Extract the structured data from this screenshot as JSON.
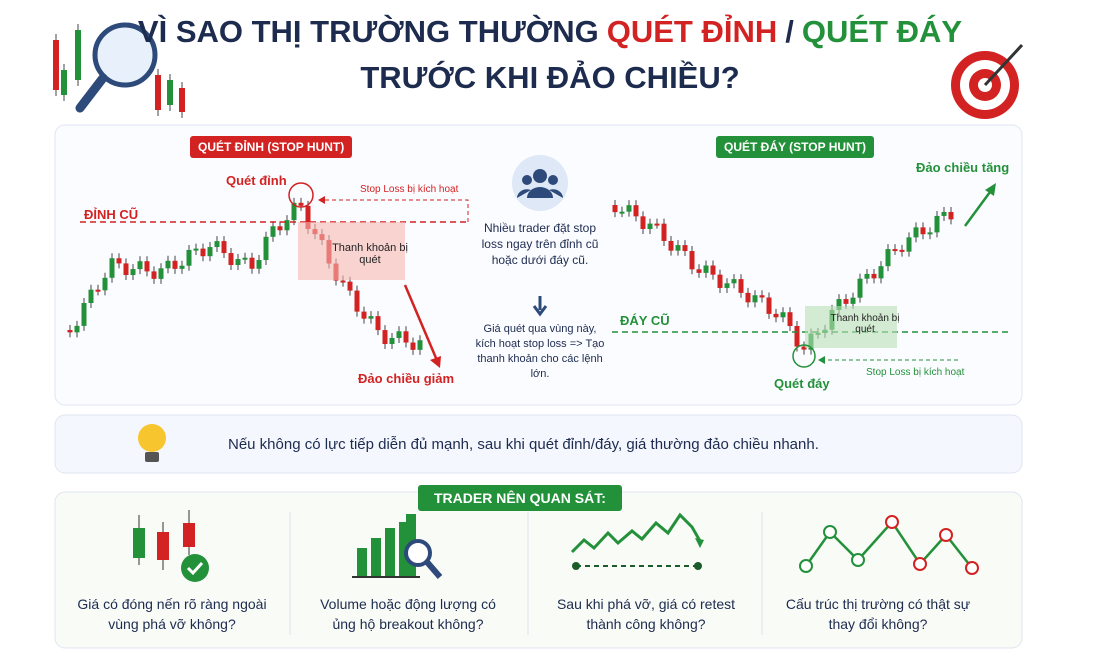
{
  "header": {
    "title_line1": [
      "VÌ SAO THỊ TRƯỜNG THƯỜNG",
      "QUÉT ĐỈNH",
      "/",
      "QUÉT ĐÁY"
    ],
    "title_line2": "TRƯỚC KHI ĐẢO CHIỀU?"
  },
  "left_panel": {
    "badge": "QUÉT ĐỈNH (STOP HUNT)",
    "sweep_label": "Quét đỉnh",
    "level_label": "ĐỈNH CŨ",
    "stop_label": "Stop Loss bị kích hoạt",
    "zone_label": "Thanh khoản bị quét",
    "reversal_label": "Đảo chiều giảm"
  },
  "middle": {
    "text1": "Nhiều trader đặt stop loss ngay trên đỉnh cũ hoặc dưới đáy cũ.",
    "text2": "Giá quét qua vùng này, kích hoạt stop loss => Tạo thanh khoản cho các lệnh lớn."
  },
  "right_panel": {
    "badge": "QUÉT ĐÁY (STOP HUNT)",
    "reversal_label": "Đảo chiều tăng",
    "level_label": "ĐÁY CŨ",
    "zone_label": "Thanh khoản bị quét",
    "sweep_label": "Quét đáy",
    "stop_label": "Stop Loss bị kích hoạt"
  },
  "tip": {
    "text": "Nếu không có lực tiếp diễn đủ mạnh, sau khi quét đỉnh/đáy, giá thường đảo chiều nhanh."
  },
  "observe": {
    "title": "TRADER NÊN QUAN SÁT:",
    "items": [
      "Giá có đóng nến rõ ràng ngoài vùng phá vỡ không?",
      "Volume hoặc động lượng có ủng hộ breakout không?",
      "Sau khi phá vỡ, giá có retest thành công không?",
      "Cấu trúc thị trường có thật sự thay đổi không?"
    ]
  }
}
